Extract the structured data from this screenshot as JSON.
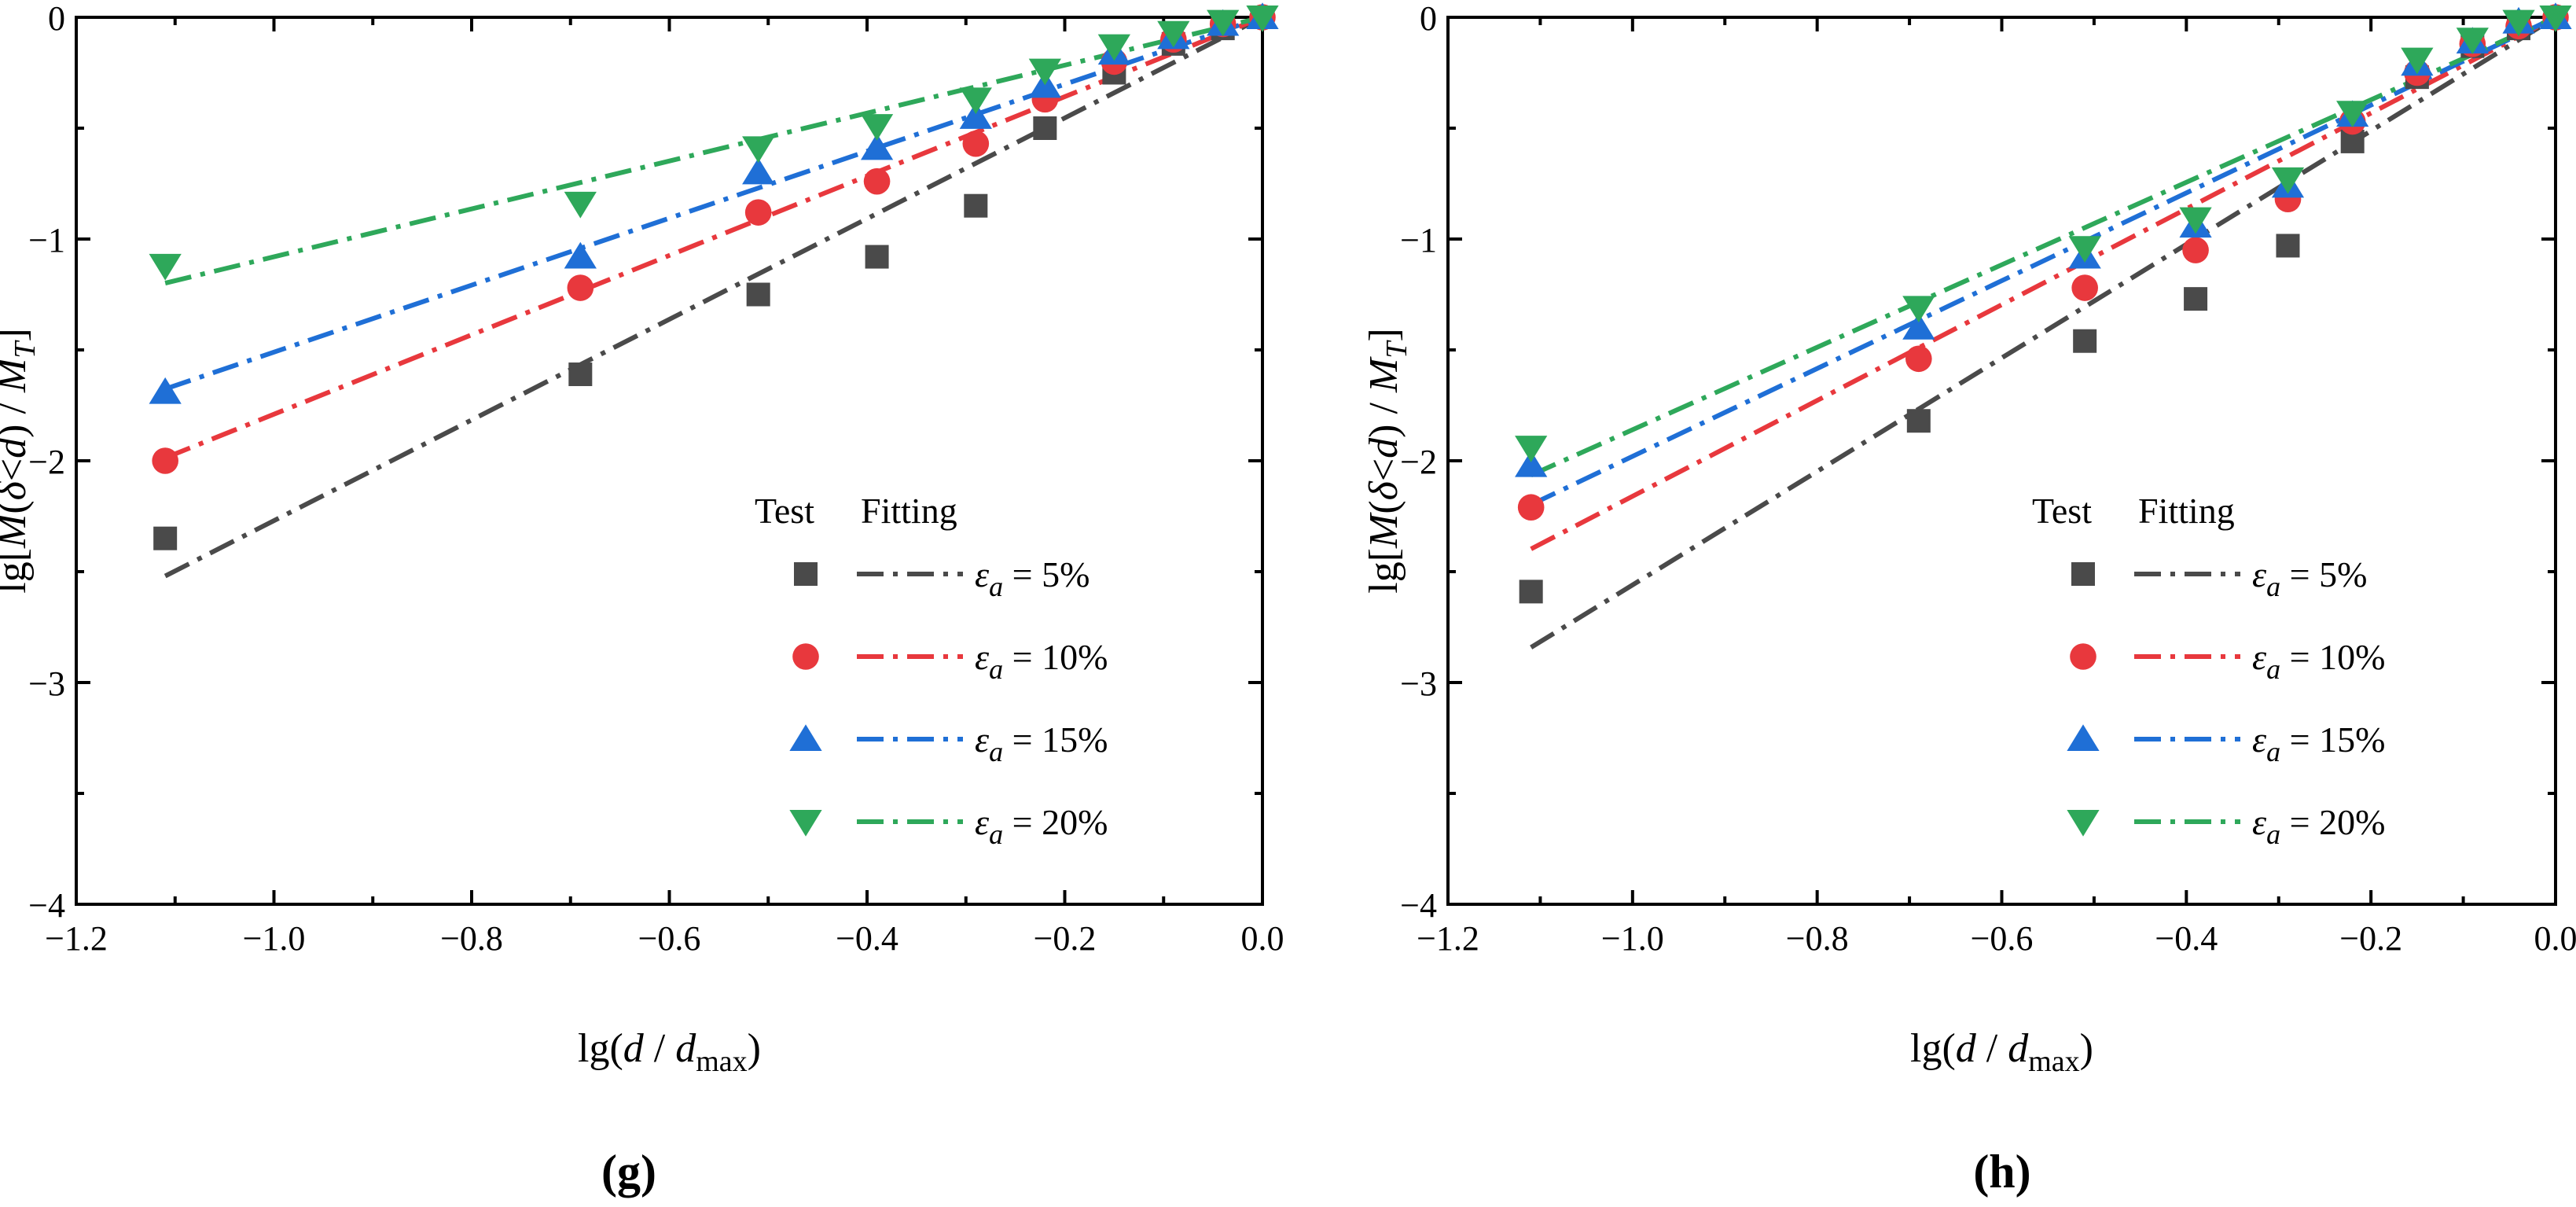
{
  "chart_data": [
    {
      "type": "scatter",
      "panel_label": "(g)",
      "xlabel": "lg(d / d_max)",
      "ylabel": "lg[M(δ<d) / M_T]",
      "xlabel_parts": {
        "pre": "lg(",
        "var": "d",
        "mid": " / ",
        "var2": "d",
        "sub": "max",
        "post": ")"
      },
      "ylabel_parts": {
        "pre": "lg[",
        "M": "M",
        "open": "(",
        "delta": "δ",
        "lt": "<",
        "d": "d",
        "close": ")",
        "slash": " / ",
        "M2": "M",
        "sub": "T",
        "post": "]"
      },
      "xlim": [
        -1.2,
        0.0
      ],
      "ylim": [
        -4,
        0
      ],
      "xticks": [
        -1.2,
        -1.0,
        -0.8,
        -0.6,
        -0.4,
        -0.2,
        0.0
      ],
      "xtick_labels": [
        "−1.2",
        "−1.0",
        "−0.8",
        "−0.6",
        "−0.4",
        "−0.2",
        "0.0"
      ],
      "yticks": [
        -4,
        -3,
        -2,
        -1,
        0
      ],
      "ytick_labels": [
        "−4",
        "−3",
        "−2",
        "−1",
        "0"
      ],
      "x": [
        -1.11,
        -0.69,
        -0.51,
        -0.39,
        -0.29,
        -0.22,
        -0.15,
        -0.09,
        -0.04,
        0.0
      ],
      "legend": {
        "test_header": "Test",
        "fitting_header": "Fitting",
        "position": "lower-right"
      },
      "series": [
        {
          "name": "εa = 5%",
          "legend_prefix": "ε",
          "legend_sub": "a",
          "legend_suffix": " = 5%",
          "marker": "square",
          "color": "#4a4a4a",
          "values": [
            -2.35,
            -1.61,
            -1.25,
            -1.08,
            -0.85,
            -0.5,
            -0.25,
            -0.12,
            -0.05,
            0.0
          ],
          "fit_slope": 2.27
        },
        {
          "name": "εa = 10%",
          "legend_prefix": "ε",
          "legend_sub": "a",
          "legend_suffix": " = 10%",
          "marker": "circle",
          "color": "#e8383d",
          "values": [
            -2.0,
            -1.22,
            -0.88,
            -0.74,
            -0.57,
            -0.37,
            -0.2,
            -0.1,
            -0.03,
            0.0
          ],
          "fit_slope": 1.79
        },
        {
          "name": "εa = 15%",
          "legend_prefix": "ε",
          "legend_sub": "a",
          "legend_suffix": " = 15%",
          "marker": "triangle-up",
          "color": "#1f6fd6",
          "values": [
            -1.69,
            -1.08,
            -0.7,
            -0.59,
            -0.45,
            -0.31,
            -0.16,
            -0.09,
            -0.03,
            0.0
          ],
          "fit_slope": 1.51
        },
        {
          "name": "εa = 20%",
          "legend_prefix": "ε",
          "legend_sub": "a",
          "legend_suffix": " = 20%",
          "marker": "triangle-down",
          "color": "#2ea85a",
          "values": [
            -1.12,
            -0.84,
            -0.59,
            -0.49,
            -0.37,
            -0.24,
            -0.13,
            -0.07,
            -0.02,
            0.0
          ],
          "fit_slope": 1.08
        }
      ]
    },
    {
      "type": "scatter",
      "panel_label": "(h)",
      "xlabel": "lg(d / d_max)",
      "ylabel": "lg[M(δ<d) / M_T]",
      "xlabel_parts": {
        "pre": "lg(",
        "var": "d",
        "mid": " / ",
        "var2": "d",
        "sub": "max",
        "post": ")"
      },
      "ylabel_parts": {
        "pre": "lg[",
        "M": "M",
        "open": "(",
        "delta": "δ",
        "lt": "<",
        "d": "d",
        "close": ")",
        "slash": " / ",
        "M2": "M",
        "sub": "T",
        "post": "]"
      },
      "xlim": [
        -1.2,
        0.0
      ],
      "ylim": [
        -4,
        0
      ],
      "xticks": [
        -1.2,
        -1.0,
        -0.8,
        -0.6,
        -0.4,
        -0.2,
        0.0
      ],
      "xtick_labels": [
        "−1.2",
        "−1.0",
        "−0.8",
        "−0.6",
        "−0.4",
        "−0.2",
        "0.0"
      ],
      "yticks": [
        -4,
        -3,
        -2,
        -1,
        0
      ],
      "ytick_labels": [
        "−4",
        "−3",
        "−2",
        "−1",
        "0"
      ],
      "x": [
        -1.11,
        -0.69,
        -0.51,
        -0.39,
        -0.29,
        -0.22,
        -0.15,
        -0.09,
        -0.04,
        0.0
      ],
      "legend": {
        "test_header": "Test",
        "fitting_header": "Fitting",
        "position": "lower-right"
      },
      "series": [
        {
          "name": "εa = 5%",
          "legend_prefix": "ε",
          "legend_sub": "a",
          "legend_suffix": " = 5%",
          "marker": "square",
          "color": "#4a4a4a",
          "values": [
            -2.59,
            -1.82,
            -1.46,
            -1.27,
            -1.03,
            -0.56,
            -0.27,
            -0.13,
            -0.05,
            0.0
          ],
          "fit_slope": 2.56
        },
        {
          "name": "εa = 10%",
          "legend_prefix": "ε",
          "legend_sub": "a",
          "legend_suffix": " = 10%",
          "marker": "circle",
          "color": "#e8383d",
          "values": [
            -2.21,
            -1.54,
            -1.22,
            -1.05,
            -0.82,
            -0.47,
            -0.25,
            -0.12,
            -0.04,
            0.0
          ],
          "fit_slope": 2.16
        },
        {
          "name": "εa = 15%",
          "legend_prefix": "ε",
          "legend_sub": "a",
          "legend_suffix": " = 15%",
          "marker": "triangle-up",
          "color": "#1f6fd6",
          "values": [
            -2.02,
            -1.4,
            -1.08,
            -0.94,
            -0.76,
            -0.44,
            -0.21,
            -0.11,
            -0.02,
            0.0
          ],
          "fit_slope": 1.98
        },
        {
          "name": "εa = 20%",
          "legend_prefix": "ε",
          "legend_sub": "a",
          "legend_suffix": " = 20%",
          "marker": "triangle-down",
          "color": "#2ea85a",
          "values": [
            -1.94,
            -1.31,
            -1.04,
            -0.91,
            -0.73,
            -0.43,
            -0.19,
            -0.1,
            -0.02,
            0.0
          ],
          "fit_slope": 1.86
        }
      ]
    }
  ]
}
